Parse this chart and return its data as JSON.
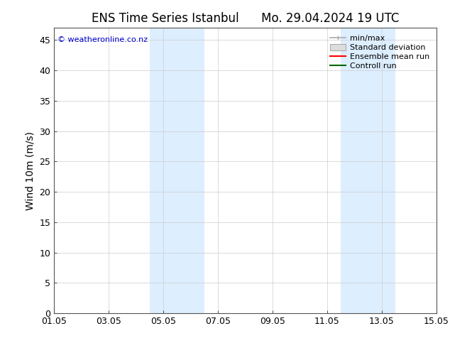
{
  "title_left": "ENS Time Series Istanbul",
  "title_right": "Mo. 29.04.2024 19 UTC",
  "ylabel": "Wind 10m (m/s)",
  "watermark": "© weatheronline.co.nz",
  "xticklabels": [
    "01.05",
    "03.05",
    "05.05",
    "07.05",
    "09.05",
    "11.05",
    "13.05",
    "15.05"
  ],
  "xtick_positions": [
    0,
    2,
    4,
    6,
    8,
    10,
    12,
    14
  ],
  "ylim": [
    0,
    47
  ],
  "yticks": [
    0,
    5,
    10,
    15,
    20,
    25,
    30,
    35,
    40,
    45
  ],
  "background_color": "#ffffff",
  "plot_background": "#ffffff",
  "shaded_bands": [
    {
      "x_start": 3.5,
      "x_end": 5.5,
      "color": "#ddeeff",
      "alpha": 1.0
    },
    {
      "x_start": 10.5,
      "x_end": 12.5,
      "color": "#ddeeff",
      "alpha": 1.0
    }
  ],
  "legend_entries": [
    {
      "label": "min/max",
      "color": "#aaaaaa",
      "style": "minmax"
    },
    {
      "label": "Standard deviation",
      "color": "#cccccc",
      "style": "fill"
    },
    {
      "label": "Ensemble mean run",
      "color": "#ff0000",
      "style": "line"
    },
    {
      "label": "Controll run",
      "color": "#006600",
      "style": "line"
    }
  ],
  "title_fontsize": 12,
  "axis_label_fontsize": 10,
  "tick_fontsize": 9,
  "legend_fontsize": 8,
  "watermark_color": "#0000cc",
  "watermark_fontsize": 8,
  "x_start_days": 0,
  "x_end_days": 14,
  "grid_color": "#cccccc",
  "spine_color": "#555555"
}
